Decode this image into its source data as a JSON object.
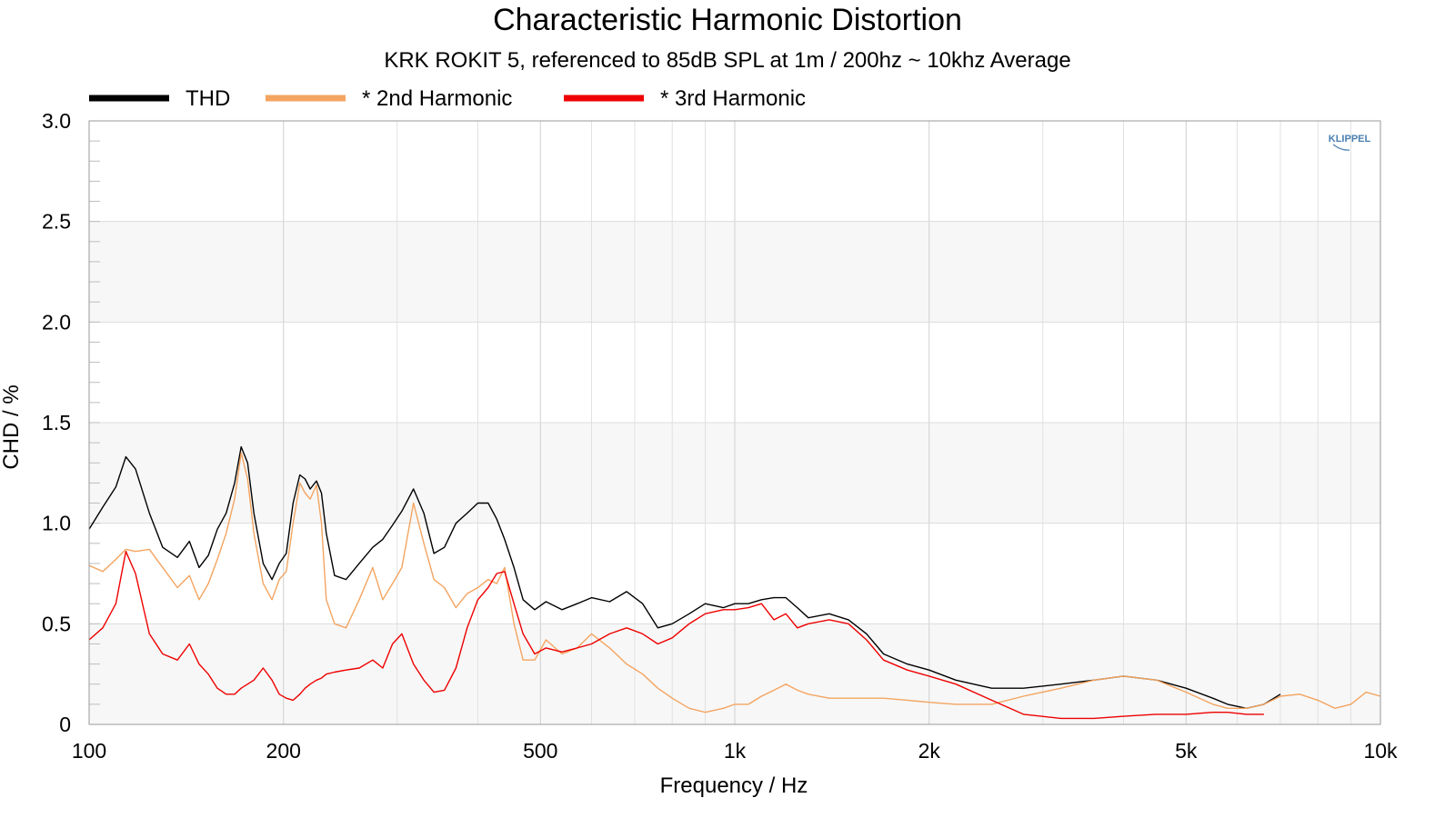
{
  "chart_data": {
    "type": "line",
    "title": "Characteristic Harmonic Distortion",
    "subtitle": "KRK ROKIT 5, referenced to 85dB SPL at 1m / 200hz ~ 10khz Average",
    "xlabel": "Frequency / Hz",
    "ylabel": "CHD / %",
    "xscale": "log",
    "xlim": [
      100,
      10000
    ],
    "ylim": [
      0,
      3.0
    ],
    "x_ticks": [
      100,
      200,
      500,
      1000,
      2000,
      5000,
      10000
    ],
    "x_tick_labels": [
      "100",
      "200",
      "500",
      "1k",
      "2k",
      "5k",
      "10k"
    ],
    "y_ticks": [
      0,
      0.5,
      1.0,
      1.5,
      2.0,
      2.5,
      3.0
    ],
    "y_tick_labels": [
      "0",
      "0.5",
      "1.0",
      "1.5",
      "2.0",
      "2.5",
      "3.0"
    ],
    "grid": true,
    "legend_position": "top-left",
    "watermark": "KLIPPEL",
    "series": [
      {
        "name": "THD",
        "color": "#000000",
        "x": [
          100,
          105,
          110,
          114,
          118,
          124,
          130,
          137,
          143,
          148,
          153,
          158,
          163,
          168,
          172,
          176,
          180,
          186,
          192,
          197,
          202,
          207,
          212,
          216,
          220,
          225,
          229,
          233,
          240,
          250,
          262,
          275,
          285,
          295,
          305,
          318,
          330,
          342,
          355,
          370,
          385,
          400,
          415,
          428,
          440,
          455,
          470,
          490,
          510,
          540,
          570,
          600,
          640,
          680,
          720,
          760,
          800,
          850,
          900,
          960,
          1000,
          1050,
          1100,
          1150,
          1200,
          1250,
          1300,
          1400,
          1500,
          1600,
          1700,
          1850,
          2000,
          2200,
          2500,
          2800,
          3200,
          3600,
          4000,
          4500,
          5000,
          5500,
          5800,
          6200,
          6600,
          7000
        ],
        "y": [
          0.97,
          1.08,
          1.18,
          1.33,
          1.27,
          1.05,
          0.88,
          0.83,
          0.91,
          0.78,
          0.84,
          0.97,
          1.05,
          1.2,
          1.38,
          1.3,
          1.05,
          0.8,
          0.72,
          0.8,
          0.85,
          1.1,
          1.24,
          1.22,
          1.17,
          1.21,
          1.15,
          0.95,
          0.74,
          0.72,
          0.8,
          0.88,
          0.92,
          0.99,
          1.06,
          1.17,
          1.05,
          0.85,
          0.88,
          1.0,
          1.05,
          1.1,
          1.1,
          1.02,
          0.92,
          0.78,
          0.62,
          0.57,
          0.61,
          0.57,
          0.6,
          0.63,
          0.61,
          0.66,
          0.6,
          0.48,
          0.5,
          0.55,
          0.6,
          0.58,
          0.6,
          0.6,
          0.62,
          0.63,
          0.63,
          0.58,
          0.53,
          0.55,
          0.52,
          0.45,
          0.35,
          0.3,
          0.27,
          0.22,
          0.18,
          0.18,
          0.2,
          0.22,
          0.24,
          0.22,
          0.18,
          0.13,
          0.1,
          0.08,
          0.1,
          0.15
        ]
      },
      {
        "name": "* 2nd Harmonic",
        "color": "#f4a460",
        "x": [
          100,
          105,
          110,
          114,
          118,
          124,
          130,
          137,
          143,
          148,
          153,
          158,
          163,
          168,
          172,
          176,
          180,
          186,
          192,
          197,
          202,
          207,
          212,
          216,
          220,
          225,
          229,
          233,
          240,
          250,
          262,
          275,
          285,
          295,
          305,
          318,
          330,
          342,
          355,
          370,
          385,
          400,
          415,
          428,
          440,
          455,
          470,
          490,
          510,
          540,
          570,
          600,
          640,
          680,
          720,
          760,
          800,
          850,
          900,
          960,
          1000,
          1050,
          1100,
          1150,
          1200,
          1250,
          1300,
          1400,
          1500,
          1600,
          1700,
          1850,
          2000,
          2200,
          2500,
          2800,
          3200,
          3600,
          4000,
          4500,
          5000,
          5500,
          5800,
          6200,
          6600,
          7000,
          7500,
          8000,
          8500,
          9000,
          9500,
          10000
        ],
        "y": [
          0.79,
          0.76,
          0.82,
          0.87,
          0.86,
          0.87,
          0.78,
          0.68,
          0.74,
          0.62,
          0.7,
          0.82,
          0.95,
          1.12,
          1.35,
          1.22,
          0.95,
          0.7,
          0.62,
          0.72,
          0.76,
          1.0,
          1.2,
          1.15,
          1.12,
          1.19,
          1.0,
          0.62,
          0.5,
          0.48,
          0.62,
          0.78,
          0.62,
          0.7,
          0.78,
          1.1,
          0.9,
          0.72,
          0.68,
          0.58,
          0.65,
          0.68,
          0.72,
          0.7,
          0.78,
          0.5,
          0.32,
          0.32,
          0.42,
          0.35,
          0.38,
          0.45,
          0.38,
          0.3,
          0.25,
          0.18,
          0.13,
          0.08,
          0.06,
          0.08,
          0.1,
          0.1,
          0.14,
          0.17,
          0.2,
          0.17,
          0.15,
          0.13,
          0.13,
          0.13,
          0.13,
          0.12,
          0.11,
          0.1,
          0.1,
          0.14,
          0.18,
          0.22,
          0.24,
          0.22,
          0.16,
          0.1,
          0.08,
          0.08,
          0.1,
          0.14,
          0.15,
          0.12,
          0.08,
          0.1,
          0.16,
          0.14
        ]
      },
      {
        "name": "* 3rd Harmonic",
        "color": "#ee0000",
        "x": [
          100,
          105,
          110,
          114,
          118,
          124,
          130,
          137,
          143,
          148,
          153,
          158,
          163,
          168,
          172,
          176,
          180,
          186,
          192,
          197,
          202,
          207,
          212,
          216,
          220,
          225,
          229,
          233,
          240,
          250,
          262,
          275,
          285,
          295,
          305,
          318,
          330,
          342,
          355,
          370,
          385,
          400,
          415,
          428,
          440,
          455,
          470,
          490,
          510,
          540,
          570,
          600,
          640,
          680,
          720,
          760,
          800,
          850,
          900,
          960,
          1000,
          1050,
          1100,
          1150,
          1200,
          1250,
          1300,
          1400,
          1500,
          1600,
          1700,
          1850,
          2000,
          2200,
          2500,
          2800,
          3200,
          3600,
          4000,
          4500,
          5000,
          5500,
          5800,
          6200,
          6600
        ],
        "y": [
          0.42,
          0.48,
          0.6,
          0.86,
          0.75,
          0.45,
          0.35,
          0.32,
          0.4,
          0.3,
          0.25,
          0.18,
          0.15,
          0.15,
          0.18,
          0.2,
          0.22,
          0.28,
          0.22,
          0.15,
          0.13,
          0.12,
          0.15,
          0.18,
          0.2,
          0.22,
          0.23,
          0.25,
          0.26,
          0.27,
          0.28,
          0.32,
          0.28,
          0.4,
          0.45,
          0.3,
          0.22,
          0.16,
          0.17,
          0.28,
          0.48,
          0.62,
          0.68,
          0.75,
          0.76,
          0.6,
          0.45,
          0.35,
          0.38,
          0.36,
          0.38,
          0.4,
          0.45,
          0.48,
          0.45,
          0.4,
          0.43,
          0.5,
          0.55,
          0.57,
          0.57,
          0.58,
          0.6,
          0.52,
          0.55,
          0.48,
          0.5,
          0.52,
          0.5,
          0.42,
          0.32,
          0.27,
          0.24,
          0.2,
          0.12,
          0.05,
          0.03,
          0.03,
          0.04,
          0.05,
          0.05,
          0.06,
          0.06,
          0.05,
          0.05
        ]
      }
    ]
  }
}
